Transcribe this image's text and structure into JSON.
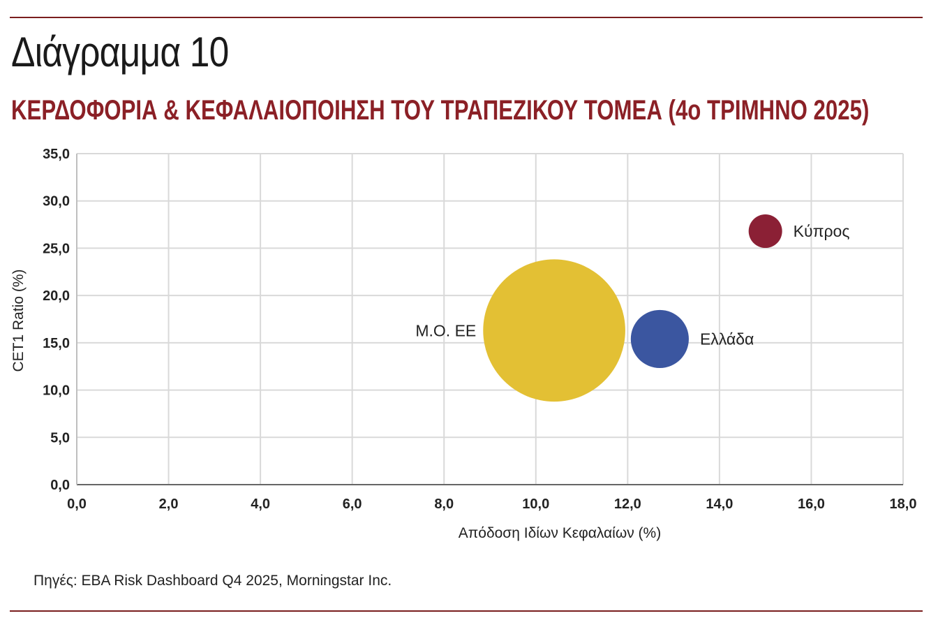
{
  "header": {
    "figure_label": "Διάγραμμα 10",
    "title": "ΚΕΡΔΟΦΟΡΙΑ & ΚΕΦΑΛΑΙΟΠΟΙΗΣΗ ΤΟΥ ΤΡΑΠΕΖΙΚΟΥ ΤΟΜΕΑ (4ο ΤΡΙΜΗΝΟ 2025)"
  },
  "footer": {
    "source": "Πηγές: EBA Risk Dashboard Q4 2025, Morningstar Inc."
  },
  "colors": {
    "accent": "#8b2026",
    "rule": "#7a1e1e",
    "grid": "#d9d9d9"
  },
  "chart_data": {
    "type": "scatter",
    "title": "",
    "xlabel": "Απόδοση Ιδίων Κεφαλαίων (%)",
    "ylabel": "CET1 Ratio (%)",
    "xlim": [
      0,
      18
    ],
    "ylim": [
      0,
      35
    ],
    "x_ticks": [
      "0,0",
      "2,0",
      "4,0",
      "6,0",
      "8,0",
      "10,0",
      "12,0",
      "14,0",
      "16,0",
      "18,0"
    ],
    "y_ticks": [
      "0,0",
      "5,0",
      "10,0",
      "15,0",
      "20,0",
      "25,0",
      "30,0",
      "35,0"
    ],
    "grid": true,
    "points": [
      {
        "label": "Κύπρος",
        "x": 15.0,
        "y": 26.8,
        "color": "#8b2035",
        "size": 1.0,
        "label_side": "right"
      },
      {
        "label": "Μ.Ο. ΕΕ",
        "x": 10.4,
        "y": 16.3,
        "color": "#e3c034",
        "size": 18.0,
        "label_side": "left"
      },
      {
        "label": "Ελλάδα",
        "x": 12.7,
        "y": 15.4,
        "color": "#3b56a0",
        "size": 3.0,
        "label_side": "right"
      }
    ]
  }
}
